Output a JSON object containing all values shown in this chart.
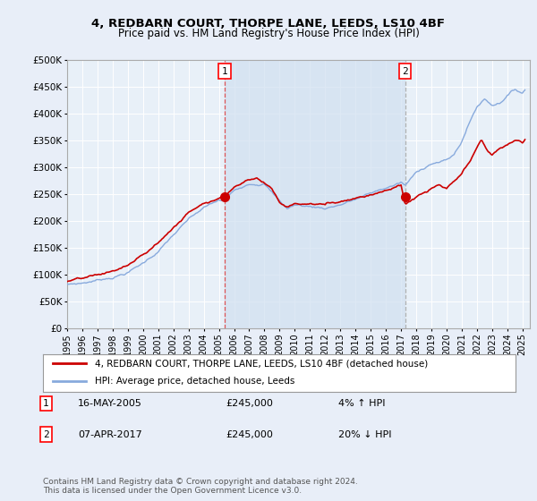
{
  "title": "4, REDBARN COURT, THORPE LANE, LEEDS, LS10 4BF",
  "subtitle": "Price paid vs. HM Land Registry's House Price Index (HPI)",
  "ylim": [
    0,
    500000
  ],
  "xlim_start": 1995.0,
  "xlim_end": 2025.5,
  "purchase1_date": 2005.37,
  "purchase1_price": 245000,
  "purchase2_date": 2017.27,
  "purchase2_price": 245000,
  "legend_line1": "4, REDBARN COURT, THORPE LANE, LEEDS, LS10 4BF (detached house)",
  "legend_line2": "HPI: Average price, detached house, Leeds",
  "table_row1_num": "1",
  "table_row1_date": "16-MAY-2005",
  "table_row1_price": "£245,000",
  "table_row1_hpi": "4% ↑ HPI",
  "table_row2_num": "2",
  "table_row2_date": "07-APR-2017",
  "table_row2_price": "£245,000",
  "table_row2_hpi": "20% ↓ HPI",
  "footer": "Contains HM Land Registry data © Crown copyright and database right 2024.\nThis data is licensed under the Open Government Licence v3.0.",
  "bg_color": "#e8eef8",
  "plot_bg_color": "#e8f0f8",
  "shaded_color": "#d0e0f0",
  "line_red": "#cc0000",
  "line_blue": "#88aadd",
  "grid_color": "#ffffff",
  "vline1_color": "#dd4444",
  "vline2_color": "#aaaaaa"
}
